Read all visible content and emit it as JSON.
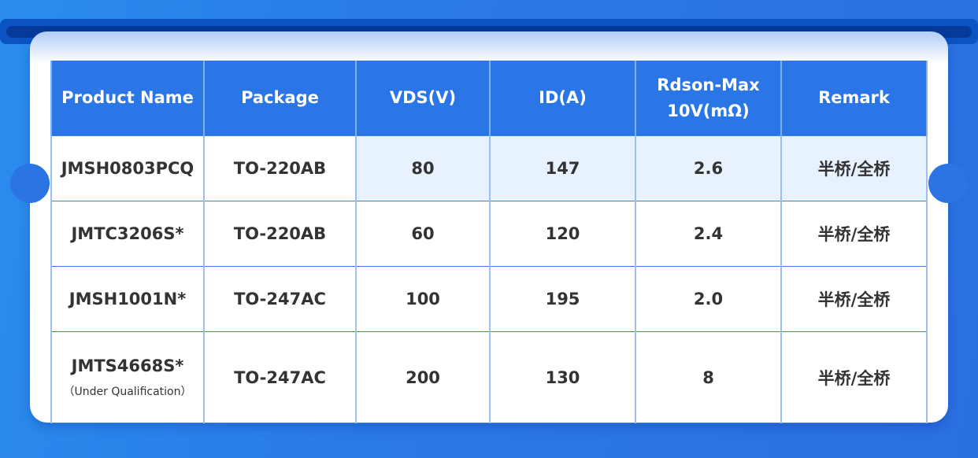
{
  "table": {
    "headers": [
      "Product Name",
      "Package",
      "VDS(V)",
      "ID(A)",
      "Rdson-Max\n10V(mΩ)",
      "Remark"
    ],
    "header_rdson_line1": "Rdson-Max",
    "header_rdson_line2": "10V(mΩ)",
    "rows": [
      {
        "name": "JMSH0803PCQ",
        "note": "",
        "package": "TO-220AB",
        "vds": "80",
        "id": "147",
        "rdson": "2.6",
        "remark": "半桥/全桥"
      },
      {
        "name": "JMTC3206S*",
        "note": "",
        "package": "TO-220AB",
        "vds": "60",
        "id": "120",
        "rdson": "2.4",
        "remark": "半桥/全桥"
      },
      {
        "name": "JMSH1001N*",
        "note": "",
        "package": "TO-247AC",
        "vds": "100",
        "id": "195",
        "rdson": "2.0",
        "remark": "半桥/全桥"
      },
      {
        "name": "JMTS4668S*",
        "note": "（Under Qualification）",
        "package": "TO-247AC",
        "vds": "200",
        "id": "130",
        "rdson": "8",
        "remark": "半桥/全桥"
      }
    ]
  },
  "colors": {
    "header_bg": "#2a76e6",
    "highlight_row": "#e8f2fe",
    "background": "#2a7ae6"
  }
}
